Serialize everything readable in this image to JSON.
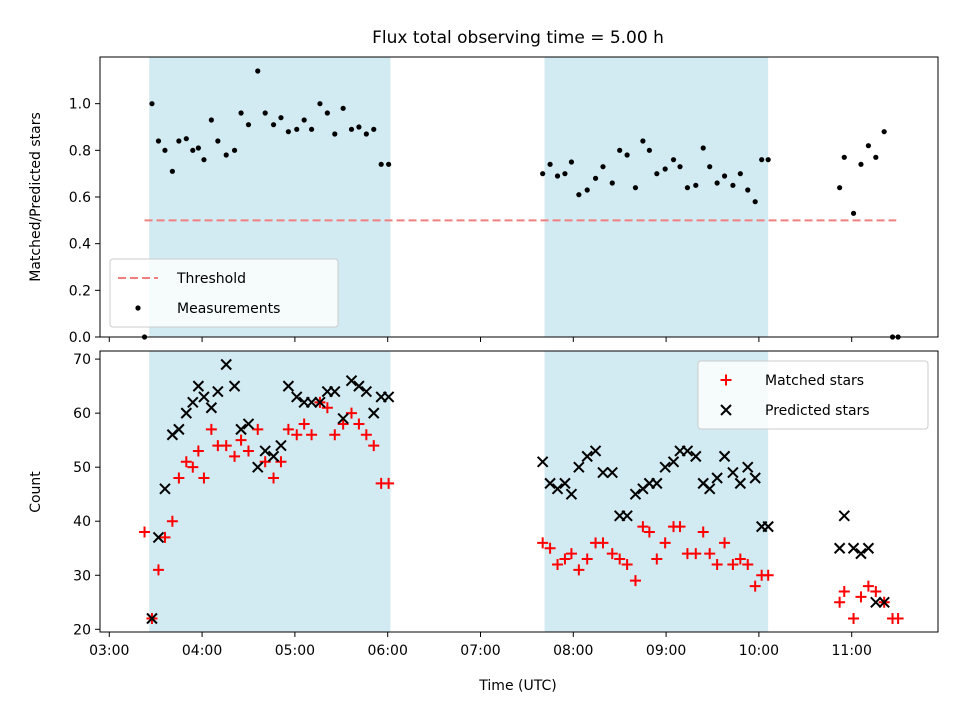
{
  "chart_data": [
    {
      "type": "scatter",
      "title": "Flux total observing time = 5.00 h",
      "ylabel": "Matched/Predicted stars",
      "xlabel": "",
      "x_unit": "hours UTC",
      "xlim": [
        2.9,
        11.93
      ],
      "ylim": [
        0.0,
        1.2
      ],
      "yticks": [
        0.0,
        0.2,
        0.4,
        0.6,
        0.8,
        1.0
      ],
      "ytick_labels": [
        "0.0",
        "0.2",
        "0.4",
        "0.6",
        "0.8",
        "1.0"
      ],
      "xticks": [
        3,
        4,
        5,
        6,
        7,
        8,
        9,
        10,
        11
      ],
      "grid": false,
      "legend_position": "bottom-left",
      "shaded_intervals": [
        [
          3.43,
          6.03
        ],
        [
          7.69,
          10.1
        ]
      ],
      "shade_color": "#add8e6",
      "threshold": {
        "name": "Threshold",
        "value": 0.5,
        "x_range": [
          3.38,
          11.48
        ],
        "color": "#f08080",
        "style": "dashed"
      },
      "series": [
        {
          "name": "Measurements",
          "color": "#000000",
          "marker": "dot",
          "x": [
            3.38,
            3.46,
            3.53,
            3.6,
            3.68,
            3.75,
            3.83,
            3.9,
            3.96,
            4.02,
            4.1,
            4.17,
            4.26,
            4.35,
            4.42,
            4.5,
            4.6,
            4.68,
            4.77,
            4.85,
            4.93,
            5.02,
            5.1,
            5.18,
            5.27,
            5.35,
            5.43,
            5.52,
            5.61,
            5.69,
            5.77,
            5.85,
            5.93,
            6.01,
            7.67,
            7.75,
            7.83,
            7.91,
            7.98,
            8.06,
            8.15,
            8.24,
            8.32,
            8.42,
            8.5,
            8.58,
            8.67,
            8.75,
            8.82,
            8.9,
            8.99,
            9.08,
            9.15,
            9.23,
            9.32,
            9.4,
            9.47,
            9.55,
            9.63,
            9.72,
            9.8,
            9.88,
            9.96,
            10.03,
            10.1,
            10.87,
            10.92,
            11.02,
            11.1,
            11.18,
            11.26,
            11.35,
            11.44,
            11.5
          ],
          "y": [
            0.0,
            1.0,
            0.84,
            0.8,
            0.71,
            0.84,
            0.85,
            0.8,
            0.81,
            0.76,
            0.93,
            0.84,
            0.78,
            0.8,
            0.96,
            0.91,
            1.14,
            0.96,
            0.91,
            0.94,
            0.88,
            0.89,
            0.93,
            0.89,
            1.0,
            0.96,
            0.87,
            0.98,
            0.89,
            0.9,
            0.87,
            0.89,
            0.74,
            0.74,
            0.7,
            0.74,
            0.69,
            0.7,
            0.75,
            0.61,
            0.63,
            0.68,
            0.73,
            0.66,
            0.8,
            0.78,
            0.64,
            0.84,
            0.8,
            0.7,
            0.72,
            0.76,
            0.73,
            0.64,
            0.65,
            0.81,
            0.73,
            0.66,
            0.69,
            0.65,
            0.7,
            0.63,
            0.58,
            0.76,
            0.76,
            0.64,
            0.77,
            0.53,
            0.74,
            0.82,
            0.77,
            0.88,
            0.0,
            0.0
          ]
        }
      ]
    },
    {
      "type": "scatter",
      "title": "",
      "xlabel": "Time (UTC)",
      "ylabel": "Count",
      "x_unit": "hours UTC",
      "xlim": [
        2.9,
        11.93
      ],
      "ylim": [
        19.5,
        71.5
      ],
      "yticks": [
        20,
        30,
        40,
        50,
        60,
        70
      ],
      "ytick_labels": [
        "20",
        "30",
        "40",
        "50",
        "60",
        "70"
      ],
      "xticks": [
        3,
        4,
        5,
        6,
        7,
        8,
        9,
        10,
        11
      ],
      "xtick_labels": [
        "03:00",
        "04:00",
        "05:00",
        "06:00",
        "07:00",
        "08:00",
        "09:00",
        "10:00",
        "11:00"
      ],
      "grid": false,
      "legend_position": "top-right",
      "shaded_intervals": [
        [
          3.43,
          6.03
        ],
        [
          7.69,
          10.1
        ]
      ],
      "shade_color": "#add8e6",
      "series": [
        {
          "name": "Matched stars",
          "color": "#ff0000",
          "marker": "plus",
          "x": [
            3.38,
            3.46,
            3.53,
            3.6,
            3.68,
            3.75,
            3.83,
            3.9,
            3.96,
            4.02,
            4.1,
            4.17,
            4.26,
            4.35,
            4.42,
            4.5,
            4.6,
            4.68,
            4.77,
            4.85,
            4.93,
            5.02,
            5.1,
            5.18,
            5.27,
            5.35,
            5.43,
            5.52,
            5.61,
            5.69,
            5.77,
            5.85,
            5.93,
            6.01,
            7.67,
            7.75,
            7.83,
            7.91,
            7.98,
            8.06,
            8.15,
            8.24,
            8.32,
            8.42,
            8.5,
            8.58,
            8.67,
            8.75,
            8.82,
            8.9,
            8.99,
            9.08,
            9.15,
            9.23,
            9.32,
            9.4,
            9.47,
            9.55,
            9.63,
            9.72,
            9.8,
            9.88,
            9.96,
            10.03,
            10.1,
            10.87,
            10.92,
            11.02,
            11.1,
            11.18,
            11.26,
            11.35,
            11.44,
            11.5
          ],
          "y": [
            38,
            22,
            31,
            37,
            40,
            48,
            51,
            50,
            53,
            48,
            57,
            54,
            54,
            52,
            55,
            53,
            57,
            51,
            48,
            51,
            57,
            56,
            58,
            56,
            62,
            61,
            56,
            58,
            60,
            58,
            56,
            54,
            47,
            47,
            36,
            35,
            32,
            33,
            34,
            31,
            33,
            36,
            36,
            34,
            33,
            32,
            29,
            39,
            38,
            33,
            36,
            39,
            39,
            34,
            34,
            38,
            34,
            32,
            36,
            32,
            33,
            32,
            28,
            30,
            30,
            25,
            27,
            22,
            26,
            28,
            27,
            25,
            22,
            22
          ]
        },
        {
          "name": "Predicted stars",
          "color": "#000000",
          "marker": "x",
          "x": [
            3.46,
            3.53,
            3.6,
            3.68,
            3.75,
            3.83,
            3.9,
            3.96,
            4.02,
            4.1,
            4.17,
            4.26,
            4.35,
            4.42,
            4.5,
            4.6,
            4.68,
            4.77,
            4.85,
            4.93,
            5.02,
            5.1,
            5.18,
            5.27,
            5.35,
            5.43,
            5.52,
            5.61,
            5.69,
            5.77,
            5.85,
            5.93,
            6.01,
            7.67,
            7.75,
            7.83,
            7.91,
            7.98,
            8.06,
            8.15,
            8.24,
            8.32,
            8.42,
            8.5,
            8.58,
            8.67,
            8.75,
            8.82,
            8.9,
            8.99,
            9.08,
            9.15,
            9.23,
            9.32,
            9.4,
            9.47,
            9.55,
            9.63,
            9.72,
            9.8,
            9.88,
            9.96,
            10.03,
            10.1,
            10.87,
            10.92,
            11.02,
            11.1,
            11.18,
            11.26,
            11.35
          ],
          "y": [
            22,
            37,
            46,
            56,
            57,
            60,
            62,
            65,
            63,
            61,
            64,
            69,
            65,
            57,
            58,
            50,
            53,
            52,
            54,
            65,
            63,
            62,
            62,
            62,
            64,
            64,
            59,
            66,
            65,
            64,
            60,
            63,
            63,
            51,
            47,
            46,
            47,
            45,
            50,
            52,
            53,
            49,
            49,
            41,
            41,
            45,
            46,
            47,
            47,
            50,
            51,
            53,
            53,
            52,
            47,
            46,
            48,
            52,
            49,
            47,
            50,
            48,
            39,
            39,
            35,
            41,
            35,
            34,
            35,
            25,
            25
          ]
        }
      ]
    }
  ]
}
